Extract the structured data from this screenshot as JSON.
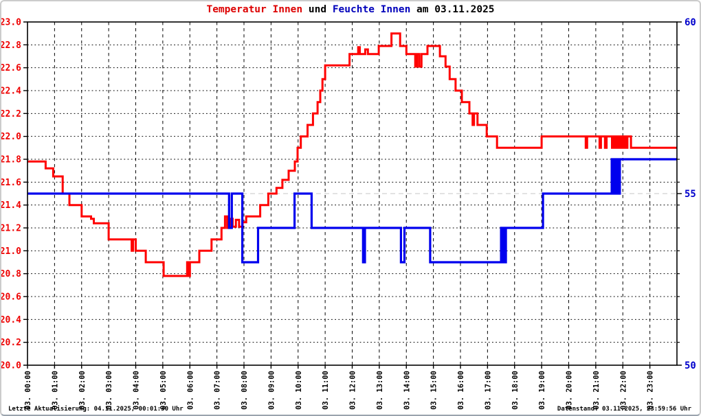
{
  "title": {
    "part1": "Temperatur Innen",
    "part2": " und ",
    "part3": "Feuchte Innen",
    "part4": " am 03.11.2025"
  },
  "footer": {
    "left": "Letzte Aktualisierung: 04.11.2025, 00:01:30 Uhr",
    "right": "Datenstand: 03.11.2025, 23:59:56 Uhr"
  },
  "colors": {
    "temp_line": "#ff0000",
    "hum_line": "#0000ee",
    "temp_label": "#ee0000",
    "hum_label": "#0000cc",
    "grid": "#000000",
    "grid_55": "#c4c4c4",
    "axis": "#000000"
  },
  "chart_data": {
    "type": "line",
    "title": "Temperatur Innen und Feuchte Innen am 03.11.2025",
    "grid": true,
    "legend": "none",
    "x_axis": {
      "min_hour": 0,
      "max_hour": 24,
      "tick_labels": [
        "03. 00:00",
        "03. 01:00",
        "03. 02:00",
        "03. 03:00",
        "03. 04:00",
        "03. 05:00",
        "03. 06:00",
        "03. 07:00",
        "03. 08:00",
        "03. 09:00",
        "03. 10:00",
        "03. 11:00",
        "03. 12:00",
        "03. 13:00",
        "03. 14:00",
        "03. 15:00",
        "03. 16:00",
        "03. 17:00",
        "03. 18:00",
        "03. 19:00",
        "03. 20:00",
        "03. 21:00",
        "03. 22:00",
        "03. 23:00"
      ]
    },
    "left_axis": {
      "min": 20.0,
      "max": 23.0,
      "step": 0.2,
      "tick_labels": [
        "23.0",
        "22.8",
        "22.6",
        "22.4",
        "22.2",
        "22.0",
        "21.8",
        "21.6",
        "21.4",
        "21.2",
        "21.0",
        "20.8",
        "20.6",
        "20.4",
        "20.2",
        "20.0"
      ]
    },
    "right_axis": {
      "min": 50,
      "max": 60,
      "ticks": [
        {
          "value": 60,
          "label": "60"
        },
        {
          "value": 55,
          "label": "55"
        },
        {
          "value": 50,
          "label": "50"
        }
      ]
    },
    "series": [
      {
        "name": "Temperatur Innen",
        "axis": "left",
        "color": "#ff0000",
        "step": true,
        "points": [
          [
            0.0,
            21.78
          ],
          [
            0.67,
            21.72
          ],
          [
            0.95,
            21.65
          ],
          [
            1.3,
            21.5
          ],
          [
            1.55,
            21.4
          ],
          [
            2.0,
            21.3
          ],
          [
            2.35,
            21.28
          ],
          [
            2.45,
            21.24
          ],
          [
            3.0,
            21.1
          ],
          [
            3.85,
            21.0
          ],
          [
            3.9,
            21.1
          ],
          [
            4.0,
            21.0
          ],
          [
            4.37,
            20.9
          ],
          [
            5.03,
            20.78
          ],
          [
            5.9,
            20.9
          ],
          [
            5.94,
            20.78
          ],
          [
            6.0,
            20.9
          ],
          [
            6.35,
            21.0
          ],
          [
            6.8,
            21.1
          ],
          [
            7.17,
            21.2
          ],
          [
            7.3,
            21.3
          ],
          [
            7.38,
            21.2
          ],
          [
            7.48,
            21.28
          ],
          [
            7.58,
            21.21
          ],
          [
            7.7,
            21.27
          ],
          [
            7.82,
            21.21
          ],
          [
            7.95,
            21.25
          ],
          [
            8.08,
            21.3
          ],
          [
            8.6,
            21.4
          ],
          [
            8.9,
            21.5
          ],
          [
            9.2,
            21.55
          ],
          [
            9.42,
            21.62
          ],
          [
            9.65,
            21.7
          ],
          [
            9.88,
            21.78
          ],
          [
            9.98,
            21.9
          ],
          [
            10.1,
            22.0
          ],
          [
            10.35,
            22.1
          ],
          [
            10.55,
            22.2
          ],
          [
            10.72,
            22.3
          ],
          [
            10.82,
            22.4
          ],
          [
            10.9,
            22.5
          ],
          [
            11.0,
            22.62
          ],
          [
            11.9,
            22.72
          ],
          [
            12.22,
            22.78
          ],
          [
            12.28,
            22.72
          ],
          [
            12.48,
            22.76
          ],
          [
            12.58,
            22.72
          ],
          [
            12.98,
            22.79
          ],
          [
            13.45,
            22.9
          ],
          [
            13.77,
            22.79
          ],
          [
            14.0,
            22.72
          ],
          [
            14.33,
            22.61
          ],
          [
            14.4,
            22.72
          ],
          [
            14.48,
            22.61
          ],
          [
            14.56,
            22.72
          ],
          [
            14.78,
            22.79
          ],
          [
            15.24,
            22.7
          ],
          [
            15.45,
            22.61
          ],
          [
            15.6,
            22.5
          ],
          [
            15.82,
            22.4
          ],
          [
            16.05,
            22.3
          ],
          [
            16.33,
            22.2
          ],
          [
            16.45,
            22.1
          ],
          [
            16.5,
            22.2
          ],
          [
            16.63,
            22.1
          ],
          [
            16.97,
            22.0
          ],
          [
            17.35,
            21.9
          ],
          [
            19.0,
            22.0
          ],
          [
            20.63,
            21.9
          ],
          [
            20.68,
            22.0
          ],
          [
            21.14,
            21.9
          ],
          [
            21.19,
            22.0
          ],
          [
            21.34,
            21.9
          ],
          [
            21.4,
            22.0
          ],
          [
            21.6,
            21.9
          ],
          [
            21.66,
            22.0
          ],
          [
            21.72,
            21.9
          ],
          [
            21.78,
            22.0
          ],
          [
            21.84,
            21.9
          ],
          [
            21.9,
            22.0
          ],
          [
            21.96,
            21.9
          ],
          [
            22.03,
            22.0
          ],
          [
            22.1,
            21.9
          ],
          [
            22.17,
            22.0
          ],
          [
            22.3,
            21.9
          ],
          [
            24.0,
            21.9
          ]
        ]
      },
      {
        "name": "Feuchte Innen",
        "axis": "right",
        "color": "#0000ee",
        "step": true,
        "points": [
          [
            0.0,
            55
          ],
          [
            7.45,
            54
          ],
          [
            7.55,
            55
          ],
          [
            7.94,
            53
          ],
          [
            8.52,
            54
          ],
          [
            9.87,
            55
          ],
          [
            10.5,
            54
          ],
          [
            12.4,
            53
          ],
          [
            12.47,
            54
          ],
          [
            13.8,
            53
          ],
          [
            13.93,
            54
          ],
          [
            14.88,
            53
          ],
          [
            17.5,
            54
          ],
          [
            17.54,
            53
          ],
          [
            17.58,
            54
          ],
          [
            17.63,
            53
          ],
          [
            17.68,
            54
          ],
          [
            19.05,
            55
          ],
          [
            21.59,
            56
          ],
          [
            21.64,
            55
          ],
          [
            21.69,
            56
          ],
          [
            21.74,
            55
          ],
          [
            21.79,
            56
          ],
          [
            21.84,
            55
          ],
          [
            21.89,
            56
          ],
          [
            24.0,
            56
          ]
        ]
      }
    ]
  }
}
